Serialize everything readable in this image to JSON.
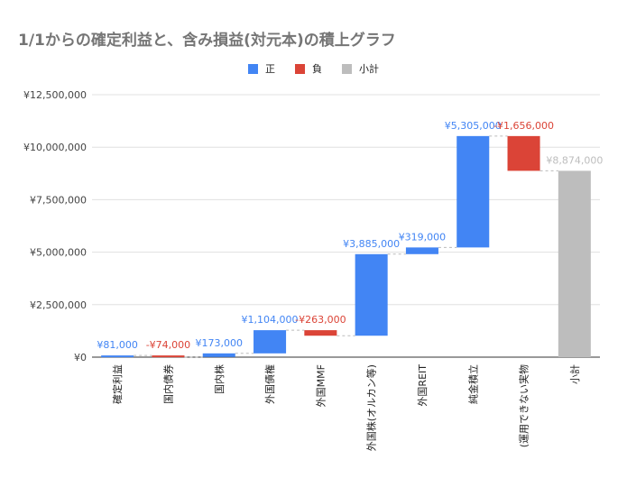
{
  "chart_data": {
    "type": "waterfall",
    "title": "1/1からの確定利益と、含み損益(対元本)の積上グラフ",
    "legend": [
      {
        "key": "positive",
        "label": "正",
        "color": "#4285f4"
      },
      {
        "key": "negative",
        "label": "負",
        "color": "#db4437"
      },
      {
        "key": "subtotal",
        "label": "小計",
        "color": "#bdbdbd"
      }
    ],
    "legend_position": "top",
    "categories": [
      "確定利益",
      "国内債券",
      "国内株",
      "外国債権",
      "外国MMF",
      "外国株(オルカン等)",
      "外国REIT",
      "純金積立",
      "(運用できない実物",
      "小計"
    ],
    "values": [
      81000,
      -74000,
      173000,
      1104000,
      -263000,
      3885000,
      319000,
      5305000,
      -1656000,
      8874000
    ],
    "kinds": [
      "positive",
      "negative",
      "positive",
      "positive",
      "negative",
      "positive",
      "positive",
      "positive",
      "negative",
      "subtotal"
    ],
    "data_labels": [
      "¥81,000",
      "-¥74,000",
      "¥173,000",
      "¥1,104,000",
      "-¥263,000",
      "¥3,885,000",
      "¥319,000",
      "¥5,305,000",
      "-¥1,656,000",
      "¥8,874,000"
    ],
    "ylim": [
      0,
      12500000
    ],
    "yticks": [
      0,
      2500000,
      5000000,
      7500000,
      10000000,
      12500000
    ],
    "ytick_labels": [
      "¥0",
      "¥2,500,000",
      "¥5,000,000",
      "¥7,500,000",
      "¥10,000,000",
      "¥12,500,000"
    ],
    "grid": true
  }
}
